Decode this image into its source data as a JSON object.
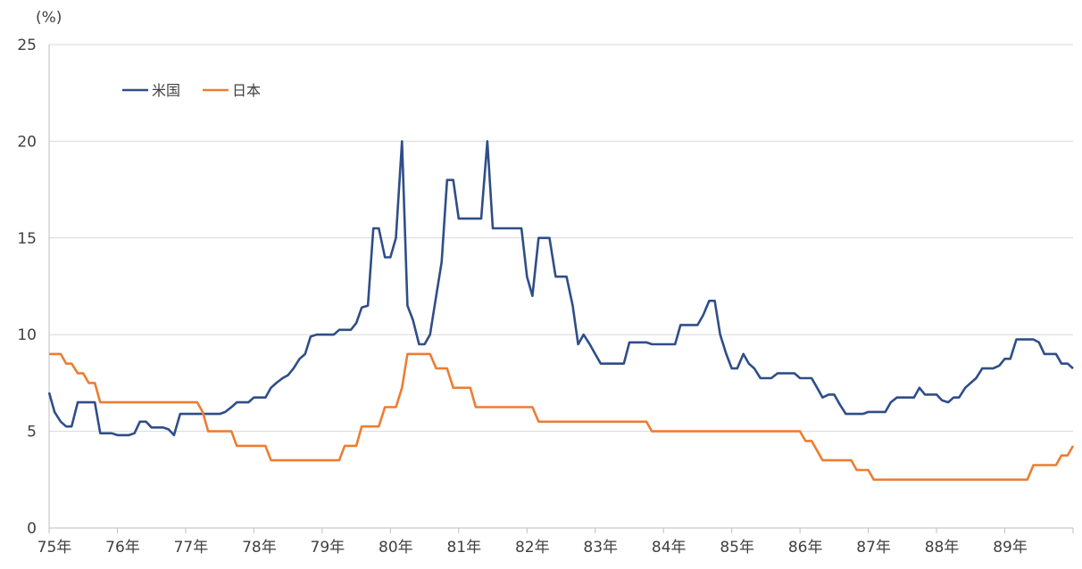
{
  "chart_data": {
    "type": "line",
    "unit_label": "(%)",
    "y_range": [
      0,
      25
    ],
    "y_ticks": [
      "0",
      "5",
      "10",
      "15",
      "20",
      "25"
    ],
    "x_range": [
      1975,
      1990
    ],
    "x_ticks": [
      "75年",
      "76年",
      "77年",
      "78年",
      "79年",
      "80年",
      "81年",
      "82年",
      "83年",
      "84年",
      "85年",
      "86年",
      "87年",
      "88年",
      "89年"
    ],
    "grid": "horizontal",
    "legend_position": "top-left",
    "series": [
      {
        "name": "米国",
        "color": "#2F4E88",
        "points": [
          [
            1975.0,
            7.0
          ],
          [
            1975.08,
            6.0
          ],
          [
            1975.17,
            5.5
          ],
          [
            1975.25,
            5.25
          ],
          [
            1975.33,
            5.25
          ],
          [
            1975.42,
            6.5
          ],
          [
            1975.5,
            6.5
          ],
          [
            1975.58,
            6.5
          ],
          [
            1975.67,
            6.5
          ],
          [
            1975.75,
            4.9
          ],
          [
            1975.83,
            4.9
          ],
          [
            1975.92,
            4.9
          ],
          [
            1976.0,
            4.8
          ],
          [
            1976.08,
            4.8
          ],
          [
            1976.17,
            4.8
          ],
          [
            1976.25,
            4.9
          ],
          [
            1976.33,
            5.5
          ],
          [
            1976.42,
            5.5
          ],
          [
            1976.5,
            5.2
          ],
          [
            1976.58,
            5.2
          ],
          [
            1976.67,
            5.2
          ],
          [
            1976.75,
            5.1
          ],
          [
            1976.83,
            4.8
          ],
          [
            1976.92,
            5.9
          ],
          [
            1977.0,
            5.9
          ],
          [
            1977.17,
            5.9
          ],
          [
            1977.33,
            5.9
          ],
          [
            1977.5,
            5.9
          ],
          [
            1977.58,
            6.0
          ],
          [
            1977.67,
            6.25
          ],
          [
            1977.75,
            6.5
          ],
          [
            1977.83,
            6.5
          ],
          [
            1977.92,
            6.5
          ],
          [
            1978.0,
            6.75
          ],
          [
            1978.17,
            6.75
          ],
          [
            1978.25,
            7.25
          ],
          [
            1978.33,
            7.5
          ],
          [
            1978.42,
            7.75
          ],
          [
            1978.5,
            7.9
          ],
          [
            1978.58,
            8.25
          ],
          [
            1978.67,
            8.75
          ],
          [
            1978.75,
            9.0
          ],
          [
            1978.83,
            9.9
          ],
          [
            1978.92,
            10.0
          ],
          [
            1979.0,
            10.0
          ],
          [
            1979.17,
            10.0
          ],
          [
            1979.25,
            10.25
          ],
          [
            1979.33,
            10.25
          ],
          [
            1979.42,
            10.25
          ],
          [
            1979.5,
            10.6
          ],
          [
            1979.58,
            11.4
          ],
          [
            1979.67,
            11.5
          ],
          [
            1979.75,
            15.5
          ],
          [
            1979.83,
            15.5
          ],
          [
            1979.92,
            14.0
          ],
          [
            1980.0,
            14.0
          ],
          [
            1980.08,
            15.0
          ],
          [
            1980.17,
            20.0
          ],
          [
            1980.25,
            11.5
          ],
          [
            1980.33,
            10.75
          ],
          [
            1980.42,
            9.5
          ],
          [
            1980.5,
            9.5
          ],
          [
            1980.58,
            10.0
          ],
          [
            1980.67,
            12.0
          ],
          [
            1980.75,
            13.75
          ],
          [
            1980.83,
            18.0
          ],
          [
            1980.92,
            18.0
          ],
          [
            1981.0,
            16.0
          ],
          [
            1981.17,
            16.0
          ],
          [
            1981.33,
            16.0
          ],
          [
            1981.42,
            20.0
          ],
          [
            1981.5,
            15.5
          ],
          [
            1981.67,
            15.5
          ],
          [
            1981.83,
            15.5
          ],
          [
            1981.92,
            15.5
          ],
          [
            1982.0,
            13.0
          ],
          [
            1982.08,
            12.0
          ],
          [
            1982.17,
            15.0
          ],
          [
            1982.25,
            15.0
          ],
          [
            1982.33,
            15.0
          ],
          [
            1982.42,
            13.0
          ],
          [
            1982.5,
            13.0
          ],
          [
            1982.58,
            13.0
          ],
          [
            1982.67,
            11.5
          ],
          [
            1982.75,
            9.5
          ],
          [
            1982.83,
            10.0
          ],
          [
            1982.92,
            9.5
          ],
          [
            1983.0,
            9.0
          ],
          [
            1983.08,
            8.5
          ],
          [
            1983.17,
            8.5
          ],
          [
            1983.25,
            8.5
          ],
          [
            1983.42,
            8.5
          ],
          [
            1983.5,
            9.6
          ],
          [
            1983.67,
            9.6
          ],
          [
            1983.75,
            9.6
          ],
          [
            1983.83,
            9.5
          ],
          [
            1984.0,
            9.5
          ],
          [
            1984.17,
            9.5
          ],
          [
            1984.25,
            10.5
          ],
          [
            1984.33,
            10.5
          ],
          [
            1984.42,
            10.5
          ],
          [
            1984.5,
            10.5
          ],
          [
            1984.58,
            11.0
          ],
          [
            1984.67,
            11.75
          ],
          [
            1984.75,
            11.75
          ],
          [
            1984.83,
            10.0
          ],
          [
            1984.92,
            9.0
          ],
          [
            1985.0,
            8.25
          ],
          [
            1985.08,
            8.25
          ],
          [
            1985.17,
            9.0
          ],
          [
            1985.25,
            8.5
          ],
          [
            1985.33,
            8.25
          ],
          [
            1985.42,
            7.75
          ],
          [
            1985.5,
            7.75
          ],
          [
            1985.58,
            7.75
          ],
          [
            1985.67,
            8.0
          ],
          [
            1985.75,
            8.0
          ],
          [
            1985.83,
            8.0
          ],
          [
            1985.92,
            8.0
          ],
          [
            1986.0,
            7.75
          ],
          [
            1986.08,
            7.75
          ],
          [
            1986.17,
            7.75
          ],
          [
            1986.25,
            7.25
          ],
          [
            1986.33,
            6.75
          ],
          [
            1986.42,
            6.9
          ],
          [
            1986.5,
            6.9
          ],
          [
            1986.58,
            6.4
          ],
          [
            1986.67,
            5.9
          ],
          [
            1986.75,
            5.9
          ],
          [
            1986.83,
            5.9
          ],
          [
            1986.92,
            5.9
          ],
          [
            1987.0,
            6.0
          ],
          [
            1987.08,
            6.0
          ],
          [
            1987.17,
            6.0
          ],
          [
            1987.25,
            6.0
          ],
          [
            1987.33,
            6.5
          ],
          [
            1987.42,
            6.75
          ],
          [
            1987.5,
            6.75
          ],
          [
            1987.58,
            6.75
          ],
          [
            1987.67,
            6.75
          ],
          [
            1987.75,
            7.25
          ],
          [
            1987.83,
            6.9
          ],
          [
            1987.92,
            6.9
          ],
          [
            1988.0,
            6.9
          ],
          [
            1988.08,
            6.6
          ],
          [
            1988.17,
            6.5
          ],
          [
            1988.25,
            6.75
          ],
          [
            1988.33,
            6.75
          ],
          [
            1988.42,
            7.25
          ],
          [
            1988.5,
            7.5
          ],
          [
            1988.58,
            7.75
          ],
          [
            1988.67,
            8.25
          ],
          [
            1988.75,
            8.25
          ],
          [
            1988.83,
            8.25
          ],
          [
            1988.92,
            8.4
          ],
          [
            1989.0,
            8.75
          ],
          [
            1989.08,
            8.75
          ],
          [
            1989.17,
            9.75
          ],
          [
            1989.25,
            9.75
          ],
          [
            1989.33,
            9.75
          ],
          [
            1989.42,
            9.75
          ],
          [
            1989.5,
            9.6
          ],
          [
            1989.58,
            9.0
          ],
          [
            1989.67,
            9.0
          ],
          [
            1989.75,
            9.0
          ],
          [
            1989.83,
            8.5
          ],
          [
            1989.92,
            8.5
          ],
          [
            1990.0,
            8.25
          ]
        ]
      },
      {
        "name": "日本",
        "color": "#ED7D31",
        "points": [
          [
            1975.0,
            9.0
          ],
          [
            1975.17,
            9.0
          ],
          [
            1975.25,
            8.5
          ],
          [
            1975.33,
            8.5
          ],
          [
            1975.42,
            8.0
          ],
          [
            1975.5,
            8.0
          ],
          [
            1975.58,
            7.5
          ],
          [
            1975.67,
            7.5
          ],
          [
            1975.75,
            6.5
          ],
          [
            1976.0,
            6.5
          ],
          [
            1976.5,
            6.5
          ],
          [
            1977.0,
            6.5
          ],
          [
            1977.17,
            6.5
          ],
          [
            1977.25,
            6.0
          ],
          [
            1977.33,
            5.0
          ],
          [
            1977.5,
            5.0
          ],
          [
            1977.67,
            5.0
          ],
          [
            1977.75,
            4.25
          ],
          [
            1978.0,
            4.25
          ],
          [
            1978.17,
            4.25
          ],
          [
            1978.25,
            3.5
          ],
          [
            1978.5,
            3.5
          ],
          [
            1979.0,
            3.5
          ],
          [
            1979.25,
            3.5
          ],
          [
            1979.33,
            4.25
          ],
          [
            1979.5,
            4.25
          ],
          [
            1979.58,
            5.25
          ],
          [
            1979.75,
            5.25
          ],
          [
            1979.83,
            5.25
          ],
          [
            1979.92,
            6.25
          ],
          [
            1980.0,
            6.25
          ],
          [
            1980.08,
            6.25
          ],
          [
            1980.17,
            7.25
          ],
          [
            1980.25,
            9.0
          ],
          [
            1980.5,
            9.0
          ],
          [
            1980.58,
            9.0
          ],
          [
            1980.67,
            8.25
          ],
          [
            1980.83,
            8.25
          ],
          [
            1980.92,
            7.25
          ],
          [
            1981.08,
            7.25
          ],
          [
            1981.17,
            7.25
          ],
          [
            1981.25,
            6.25
          ],
          [
            1981.5,
            6.25
          ],
          [
            1982.0,
            6.25
          ],
          [
            1982.08,
            6.25
          ],
          [
            1982.17,
            5.5
          ],
          [
            1982.5,
            5.5
          ],
          [
            1983.0,
            5.5
          ],
          [
            1983.5,
            5.5
          ],
          [
            1983.75,
            5.5
          ],
          [
            1983.83,
            5.0
          ],
          [
            1984.0,
            5.0
          ],
          [
            1985.0,
            5.0
          ],
          [
            1985.92,
            5.0
          ],
          [
            1986.0,
            5.0
          ],
          [
            1986.08,
            4.5
          ],
          [
            1986.17,
            4.5
          ],
          [
            1986.25,
            4.0
          ],
          [
            1986.33,
            3.5
          ],
          [
            1986.5,
            3.5
          ],
          [
            1986.75,
            3.5
          ],
          [
            1986.83,
            3.0
          ],
          [
            1986.92,
            3.0
          ],
          [
            1987.0,
            3.0
          ],
          [
            1987.08,
            2.5
          ],
          [
            1987.5,
            2.5
          ],
          [
            1988.0,
            2.5
          ],
          [
            1988.5,
            2.5
          ],
          [
            1989.0,
            2.5
          ],
          [
            1989.33,
            2.5
          ],
          [
            1989.42,
            3.25
          ],
          [
            1989.67,
            3.25
          ],
          [
            1989.75,
            3.25
          ],
          [
            1989.83,
            3.75
          ],
          [
            1989.92,
            3.75
          ],
          [
            1990.0,
            4.25
          ]
        ]
      }
    ]
  }
}
